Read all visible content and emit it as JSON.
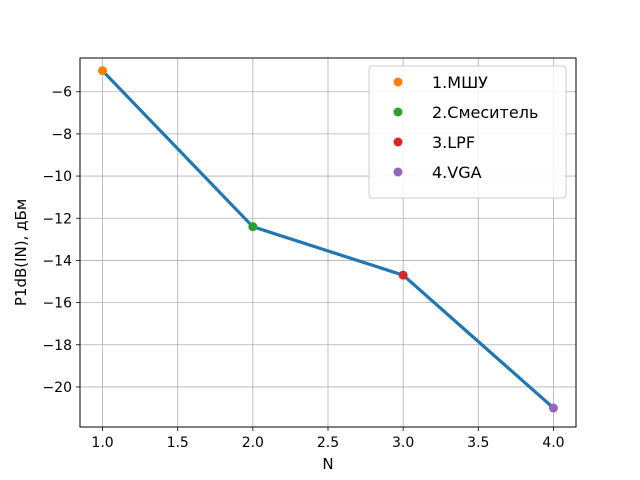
{
  "chart_data": {
    "type": "line",
    "title": "",
    "xlabel": "N",
    "ylabel": "P1dB(IN), дБм",
    "xlim": [
      0.85,
      4.15
    ],
    "ylim": [
      -21.9,
      -4.4
    ],
    "xticks": [
      1.0,
      1.5,
      2.0,
      2.5,
      3.0,
      3.5,
      4.0
    ],
    "xtick_labels": [
      "1.0",
      "1.5",
      "2.0",
      "2.5",
      "3.0",
      "3.5",
      "4.0"
    ],
    "yticks": [
      -20,
      -18,
      -16,
      -14,
      -12,
      -10,
      -8,
      -6
    ],
    "ytick_labels": [
      "−20",
      "−18",
      "−16",
      "−14",
      "−12",
      "−10",
      "−8",
      "−6"
    ],
    "grid": true,
    "legend_position": "top-right",
    "line": {
      "color": "#1f77b4",
      "x": [
        1,
        2,
        3,
        4
      ],
      "y": [
        -5.0,
        -12.4,
        -14.7,
        -21.0
      ]
    },
    "series": [
      {
        "name": "1.МШУ",
        "x": [
          1
        ],
        "y": [
          -5.0
        ],
        "color": "#ff7f0e"
      },
      {
        "name": "2.Смеситель",
        "x": [
          2
        ],
        "y": [
          -12.4
        ],
        "color": "#2ca02c"
      },
      {
        "name": "3.LPF",
        "x": [
          3
        ],
        "y": [
          -14.7
        ],
        "color": "#d62728"
      },
      {
        "name": "4.VGA",
        "x": [
          4
        ],
        "y": [
          -21.0
        ],
        "color": "#9467bd"
      }
    ]
  }
}
